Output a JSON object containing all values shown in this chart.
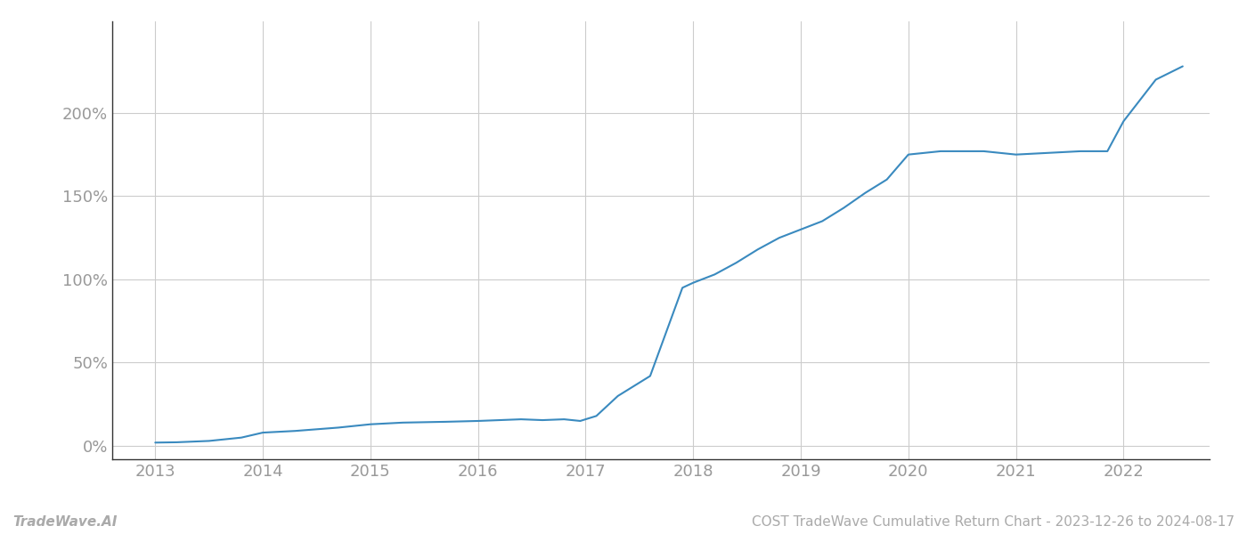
{
  "x_values": [
    2013.0,
    2013.2,
    2013.5,
    2013.8,
    2014.0,
    2014.3,
    2014.7,
    2015.0,
    2015.3,
    2015.7,
    2016.0,
    2016.2,
    2016.4,
    2016.6,
    2016.8,
    2016.95,
    2017.1,
    2017.3,
    2017.6,
    2017.9,
    2018.0,
    2018.2,
    2018.4,
    2018.6,
    2018.8,
    2019.0,
    2019.2,
    2019.4,
    2019.6,
    2019.8,
    2020.0,
    2020.15,
    2020.3,
    2020.5,
    2020.7,
    2021.0,
    2021.3,
    2021.6,
    2021.85,
    2022.0,
    2022.3,
    2022.55
  ],
  "y_values": [
    2,
    2.2,
    3,
    5,
    8,
    9,
    11,
    13,
    14,
    14.5,
    15,
    15.5,
    16,
    15.5,
    16,
    15,
    18,
    30,
    42,
    95,
    98,
    103,
    110,
    118,
    125,
    130,
    135,
    143,
    152,
    160,
    175,
    176,
    177,
    177,
    177,
    175,
    176,
    177,
    177,
    195,
    220,
    228
  ],
  "line_color": "#3a8abf",
  "line_width": 1.5,
  "background_color": "#ffffff",
  "grid_color": "#cccccc",
  "x_tick_labels": [
    "2013",
    "2014",
    "2015",
    "2016",
    "2017",
    "2018",
    "2019",
    "2020",
    "2021",
    "2022"
  ],
  "x_tick_positions": [
    2013,
    2014,
    2015,
    2016,
    2017,
    2018,
    2019,
    2020,
    2021,
    2022
  ],
  "y_tick_labels": [
    "0%",
    "50%",
    "100%",
    "150%",
    "200%"
  ],
  "y_tick_positions": [
    0,
    50,
    100,
    150,
    200
  ],
  "xlim": [
    2012.6,
    2022.8
  ],
  "ylim": [
    -8,
    255
  ],
  "bottom_left_text": "TradeWave.AI",
  "bottom_right_text": "COST TradeWave Cumulative Return Chart - 2023-12-26 to 2024-08-17",
  "left_spine_color": "#333333",
  "bottom_spine_color": "#333333",
  "tick_color": "#999999",
  "bottom_text_color": "#aaaaaa",
  "font_size_ticks": 13,
  "font_size_bottom": 11
}
